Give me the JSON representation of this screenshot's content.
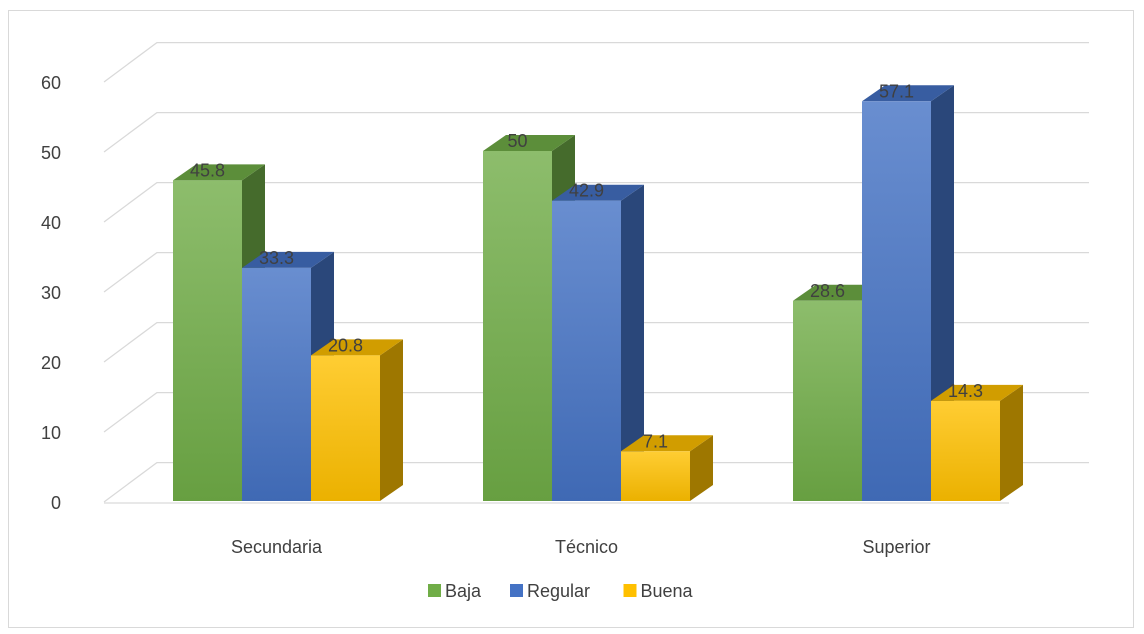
{
  "chart_data": {
    "type": "bar",
    "categories": [
      "Secundaria",
      "Técnico",
      "Superior"
    ],
    "series": [
      {
        "name": "Baja",
        "values": [
          45.8,
          50,
          28.6
        ],
        "color": "#70ad47"
      },
      {
        "name": "Regular",
        "values": [
          33.3,
          42.9,
          57.1
        ],
        "color": "#4472c4"
      },
      {
        "name": "Buena",
        "values": [
          20.8,
          7.1,
          14.3
        ],
        "color": "#ffc000"
      }
    ],
    "data_labels": [
      [
        "45.8",
        "50",
        "28.6"
      ],
      [
        "33.3",
        "42.9",
        "57.1"
      ],
      [
        "20.8",
        "7.1",
        "14.3"
      ]
    ],
    "ylim": [
      0,
      60
    ],
    "yticks": [
      "0",
      "10",
      "20",
      "30",
      "40",
      "50",
      "60"
    ],
    "grid": true,
    "legend_position": "bottom",
    "style": "3d-clustered-column",
    "title": "",
    "xlabel": "",
    "ylabel": ""
  }
}
